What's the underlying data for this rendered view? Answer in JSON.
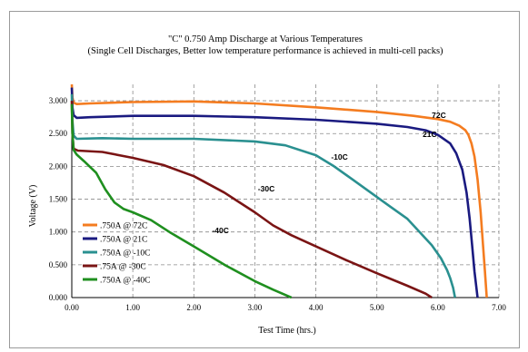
{
  "chart_data": {
    "type": "line",
    "title": "\"C\" 0.750 Amp Discharge at Various Temperatures",
    "subtitle": "(Single Cell Discharges, Better low temperature performance is achieved in multi-cell packs)",
    "xlabel": "Test Time (hrs.)",
    "ylabel": "Voltage (V)",
    "xlim": [
      0,
      7
    ],
    "ylim": [
      0,
      3.25
    ],
    "x_ticks": [
      "0.00",
      "1.00",
      "2.00",
      "3.00",
      "4.00",
      "5.00",
      "6.00",
      "7.00"
    ],
    "y_ticks": [
      "0.000",
      "0.500",
      "1.000",
      "1.500",
      "2.000",
      "2.500",
      "3.000"
    ],
    "grid": true,
    "legend_position": "bottom-left",
    "series": [
      {
        "name": ".750A @ 72C",
        "color": "#f47c20",
        "annotation": "72C",
        "points": [
          [
            0,
            3.25
          ],
          [
            0.01,
            3.05
          ],
          [
            0.03,
            2.97
          ],
          [
            0.08,
            2.95
          ],
          [
            0.3,
            2.96
          ],
          [
            1,
            2.98
          ],
          [
            2,
            2.99
          ],
          [
            3,
            2.96
          ],
          [
            4,
            2.9
          ],
          [
            5,
            2.83
          ],
          [
            5.6,
            2.77
          ],
          [
            6.0,
            2.72
          ],
          [
            6.2,
            2.68
          ],
          [
            6.35,
            2.62
          ],
          [
            6.45,
            2.55
          ],
          [
            6.5,
            2.48
          ],
          [
            6.55,
            2.35
          ],
          [
            6.6,
            2.15
          ],
          [
            6.65,
            1.8
          ],
          [
            6.7,
            1.3
          ],
          [
            6.74,
            0.8
          ],
          [
            6.77,
            0.4
          ],
          [
            6.8,
            0
          ]
        ]
      },
      {
        "name": ".750A @ 21C",
        "color": "#1a1a80",
        "annotation": "21C",
        "points": [
          [
            0,
            3.2
          ],
          [
            0.01,
            2.9
          ],
          [
            0.03,
            2.78
          ],
          [
            0.08,
            2.74
          ],
          [
            0.3,
            2.75
          ],
          [
            1,
            2.77
          ],
          [
            2,
            2.77
          ],
          [
            3,
            2.75
          ],
          [
            4,
            2.71
          ],
          [
            5,
            2.65
          ],
          [
            5.5,
            2.6
          ],
          [
            5.8,
            2.55
          ],
          [
            6.0,
            2.48
          ],
          [
            6.2,
            2.35
          ],
          [
            6.3,
            2.2
          ],
          [
            6.4,
            1.95
          ],
          [
            6.47,
            1.6
          ],
          [
            6.52,
            1.2
          ],
          [
            6.56,
            0.8
          ],
          [
            6.6,
            0.4
          ],
          [
            6.65,
            0
          ]
        ]
      },
      {
        "name": ".750A @ -10C",
        "color": "#2a9090",
        "annotation": "-10C",
        "points": [
          [
            0,
            3.1
          ],
          [
            0.01,
            2.7
          ],
          [
            0.03,
            2.47
          ],
          [
            0.08,
            2.42
          ],
          [
            0.5,
            2.43
          ],
          [
            1,
            2.42
          ],
          [
            2,
            2.42
          ],
          [
            3,
            2.38
          ],
          [
            3.5,
            2.32
          ],
          [
            4,
            2.17
          ],
          [
            4.3,
            2.0
          ],
          [
            4.6,
            1.8
          ],
          [
            4.9,
            1.6
          ],
          [
            5.2,
            1.4
          ],
          [
            5.5,
            1.2
          ],
          [
            5.7,
            1.0
          ],
          [
            5.9,
            0.8
          ],
          [
            6.05,
            0.6
          ],
          [
            6.15,
            0.42
          ],
          [
            6.2,
            0.3
          ],
          [
            6.25,
            0.15
          ],
          [
            6.28,
            0
          ]
        ]
      },
      {
        "name": ".75A @ -30C",
        "color": "#7a1414",
        "annotation": "-30C",
        "points": [
          [
            0,
            3.0
          ],
          [
            0.01,
            2.5
          ],
          [
            0.03,
            2.27
          ],
          [
            0.1,
            2.24
          ],
          [
            0.5,
            2.22
          ],
          [
            1,
            2.13
          ],
          [
            1.5,
            2.02
          ],
          [
            2,
            1.85
          ],
          [
            2.5,
            1.6
          ],
          [
            3,
            1.3
          ],
          [
            3.3,
            1.1
          ],
          [
            3.6,
            0.95
          ],
          [
            4,
            0.78
          ],
          [
            4.5,
            0.57
          ],
          [
            5,
            0.37
          ],
          [
            5.5,
            0.18
          ],
          [
            5.8,
            0.06
          ],
          [
            5.9,
            0
          ]
        ]
      },
      {
        "name": ".750A @ -40C",
        "color": "#1f8f1f",
        "annotation": "-40C",
        "points": [
          [
            0,
            2.95
          ],
          [
            0.01,
            2.5
          ],
          [
            0.03,
            2.25
          ],
          [
            0.08,
            2.18
          ],
          [
            0.2,
            2.08
          ],
          [
            0.4,
            1.9
          ],
          [
            0.55,
            1.65
          ],
          [
            0.7,
            1.45
          ],
          [
            0.85,
            1.35
          ],
          [
            1.0,
            1.3
          ],
          [
            1.3,
            1.18
          ],
          [
            1.6,
            1.0
          ],
          [
            2,
            0.78
          ],
          [
            2.5,
            0.5
          ],
          [
            3,
            0.25
          ],
          [
            3.3,
            0.12
          ],
          [
            3.55,
            0.02
          ],
          [
            3.6,
            0
          ]
        ]
      }
    ]
  }
}
